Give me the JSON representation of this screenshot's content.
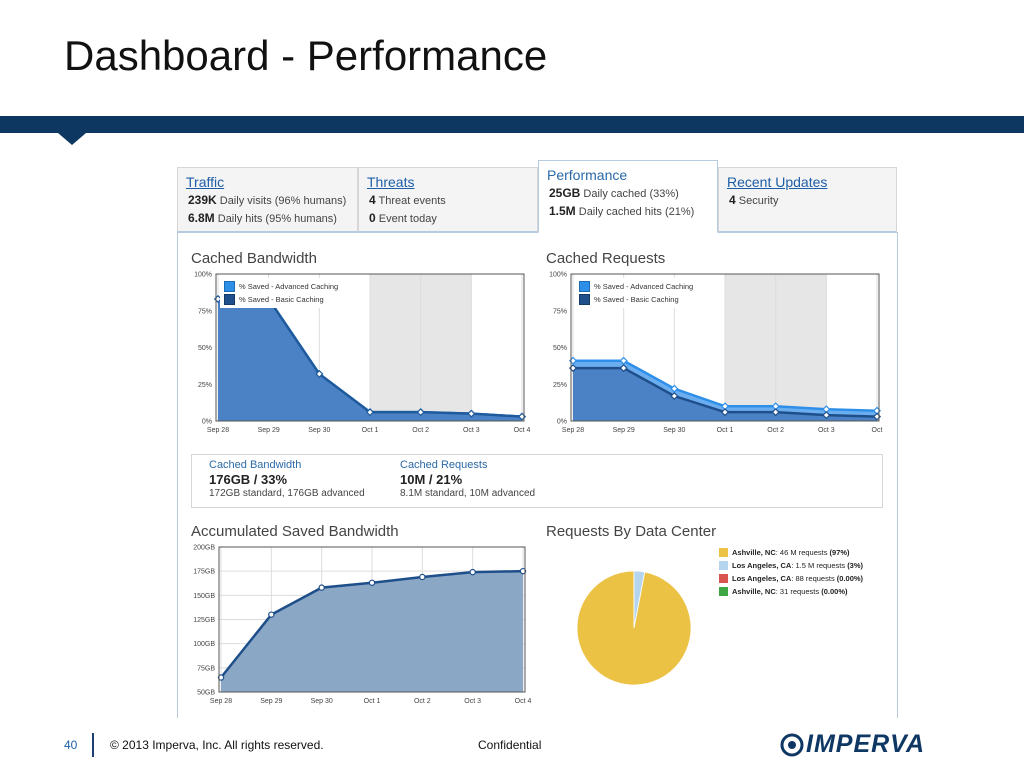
{
  "slide": {
    "title": "Dashboard - Performance"
  },
  "tabs": [
    {
      "title": "Traffic",
      "line1_value": "239K",
      "line1_text": "Daily visits (96% humans)",
      "line2_value": "6.8M",
      "line2_text": "Daily hits (95% humans)"
    },
    {
      "title": "Threats",
      "line1_value": "4",
      "line1_text": "Threat events",
      "line2_value": "0",
      "line2_text": "Event today"
    },
    {
      "title": "Performance",
      "line1_value": "25GB",
      "line1_text": "Daily cached (33%)",
      "line2_value": "1.5M",
      "line2_text": "Daily cached hits (21%)",
      "active": true
    },
    {
      "title": "Recent Updates",
      "line1_value": "4",
      "line1_text": "Security"
    }
  ],
  "sections": {
    "cached_bandwidth": "Cached Bandwidth",
    "cached_requests": "Cached Requests",
    "accumulated": "Accumulated Saved Bandwidth",
    "by_datacenter": "Requests By Data Center"
  },
  "legend": {
    "advanced": "% Saved - Advanced Caching",
    "basic": "% Saved - Basic Caching"
  },
  "summary": {
    "bandwidth": {
      "label": "Cached Bandwidth",
      "value": "176GB / 33%",
      "detail": "172GB standard, 176GB advanced"
    },
    "requests": {
      "label": "Cached Requests",
      "value": "10M / 21%",
      "detail": "8.1M standard, 10M advanced"
    }
  },
  "pie_legend": [
    {
      "name": "Ashville, NC",
      "text": ": 46 M requests ",
      "pct": "(97%)",
      "color": "#ecc245"
    },
    {
      "name": "Los Angeles, CA",
      "text": ": 1.5 M requests ",
      "pct": "(3%)",
      "color": "#b5d4ee"
    },
    {
      "name": "Los Angeles, CA",
      "text": ": 88 requests ",
      "pct": "(0.00%)",
      "color": "#d9534f"
    },
    {
      "name": "Ashville, NC",
      "text": ": 31 requests ",
      "pct": "(0.00%)",
      "color": "#3fa845"
    }
  ],
  "footer": {
    "page": "40",
    "copyright": "© 2013 Imperva, Inc. All rights reserved.",
    "confidential": "Confidential",
    "logo": "IMPERVA"
  },
  "chart_data": [
    {
      "type": "area",
      "title": "Cached Bandwidth",
      "x": [
        "Sep 28",
        "Sep 29",
        "Sep 30",
        "Oct 1",
        "Oct 2",
        "Oct 3",
        "Oct 4"
      ],
      "y_ticks": [
        "0%",
        "25%",
        "50%",
        "75%",
        "100%"
      ],
      "ylim": [
        0,
        100
      ],
      "series": [
        {
          "name": "% Saved - Advanced Caching",
          "color": "#2e8fe8",
          "values": [
            83,
            83,
            32,
            6,
            6,
            5,
            3
          ]
        },
        {
          "name": "% Saved - Basic Caching",
          "color": "#1f4f8a",
          "values": [
            83,
            83,
            32,
            6,
            6,
            5,
            3
          ]
        }
      ],
      "shaded_region": [
        "Oct 1",
        "Oct 3"
      ],
      "legend": "top-left"
    },
    {
      "type": "area",
      "title": "Cached Requests",
      "x": [
        "Sep 28",
        "Sep 29",
        "Sep 30",
        "Oct 1",
        "Oct 2",
        "Oct 3",
        "Oct"
      ],
      "y_ticks": [
        "0%",
        "25%",
        "50%",
        "75%",
        "100%"
      ],
      "ylim": [
        0,
        100
      ],
      "series": [
        {
          "name": "% Saved - Advanced Caching",
          "color": "#2e8fe8",
          "values": [
            41,
            41,
            22,
            10,
            10,
            8,
            7
          ]
        },
        {
          "name": "% Saved - Basic Caching",
          "color": "#1f4f8a",
          "values": [
            36,
            36,
            17,
            6,
            6,
            4,
            3
          ]
        }
      ],
      "shaded_region": [
        "Oct 1",
        "Oct 3"
      ],
      "legend": "top-left"
    },
    {
      "type": "area",
      "title": "Accumulated Saved Bandwidth",
      "x": [
        "Sep 28",
        "Sep 29",
        "Sep 30",
        "Oct 1",
        "Oct 2",
        "Oct 3",
        "Oct 4"
      ],
      "y_ticks": [
        "50GB",
        "75GB",
        "100GB",
        "125GB",
        "150GB",
        "175GB",
        "200GB"
      ],
      "ylim": [
        50,
        200
      ],
      "series": [
        {
          "color": "#7f9fbf",
          "values": [
            65,
            130,
            158,
            163,
            169,
            174,
            175
          ]
        }
      ]
    },
    {
      "type": "pie",
      "title": "Requests By Data Center",
      "categories": [
        "Ashville, NC",
        "Los Angeles, CA",
        "Los Angeles, CA",
        "Ashville, NC"
      ],
      "values": [
        97,
        3,
        0,
        0
      ],
      "colors": [
        "#ecc245",
        "#b5d4ee",
        "#d9534f",
        "#3fa845"
      ]
    }
  ]
}
